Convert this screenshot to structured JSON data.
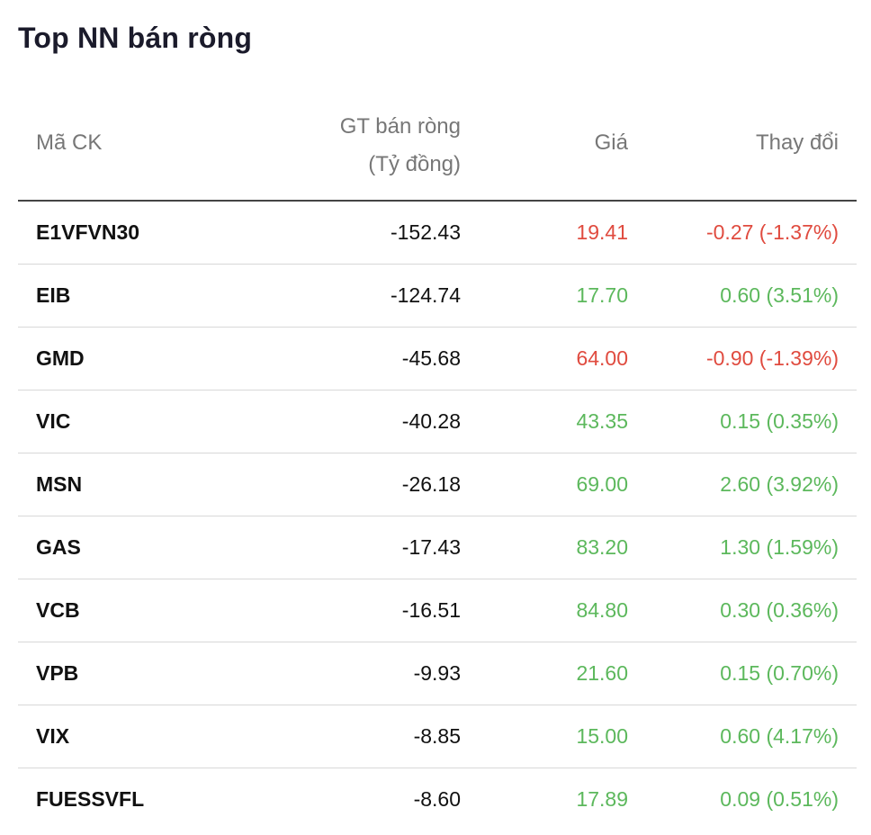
{
  "title": "Top NN bán ròng",
  "colors": {
    "up": "#5cb85c",
    "down": "#e04b3f"
  },
  "columns": {
    "symbol": "Mã CK",
    "value_line1": "GT bán ròng",
    "value_line2": "(Tỷ đồng)",
    "price": "Giá",
    "change": "Thay đổi"
  },
  "rows": [
    {
      "symbol": "E1VFVN30",
      "value": "-152.43",
      "price": "19.41",
      "change": "-0.27 (-1.37%)",
      "direction": "down"
    },
    {
      "symbol": "EIB",
      "value": "-124.74",
      "price": "17.70",
      "change": "0.60 (3.51%)",
      "direction": "up"
    },
    {
      "symbol": "GMD",
      "value": "-45.68",
      "price": "64.00",
      "change": "-0.90 (-1.39%)",
      "direction": "down"
    },
    {
      "symbol": "VIC",
      "value": "-40.28",
      "price": "43.35",
      "change": "0.15 (0.35%)",
      "direction": "up"
    },
    {
      "symbol": "MSN",
      "value": "-26.18",
      "price": "69.00",
      "change": "2.60 (3.92%)",
      "direction": "up"
    },
    {
      "symbol": "GAS",
      "value": "-17.43",
      "price": "83.20",
      "change": "1.30 (1.59%)",
      "direction": "up"
    },
    {
      "symbol": "VCB",
      "value": "-16.51",
      "price": "84.80",
      "change": "0.30 (0.36%)",
      "direction": "up"
    },
    {
      "symbol": "VPB",
      "value": "-9.93",
      "price": "21.60",
      "change": "0.15 (0.70%)",
      "direction": "up"
    },
    {
      "symbol": "VIX",
      "value": "-8.85",
      "price": "15.00",
      "change": "0.60 (4.17%)",
      "direction": "up"
    },
    {
      "symbol": "FUESSVFL",
      "value": "-8.60",
      "price": "17.89",
      "change": "0.09 (0.51%)",
      "direction": "up"
    }
  ]
}
